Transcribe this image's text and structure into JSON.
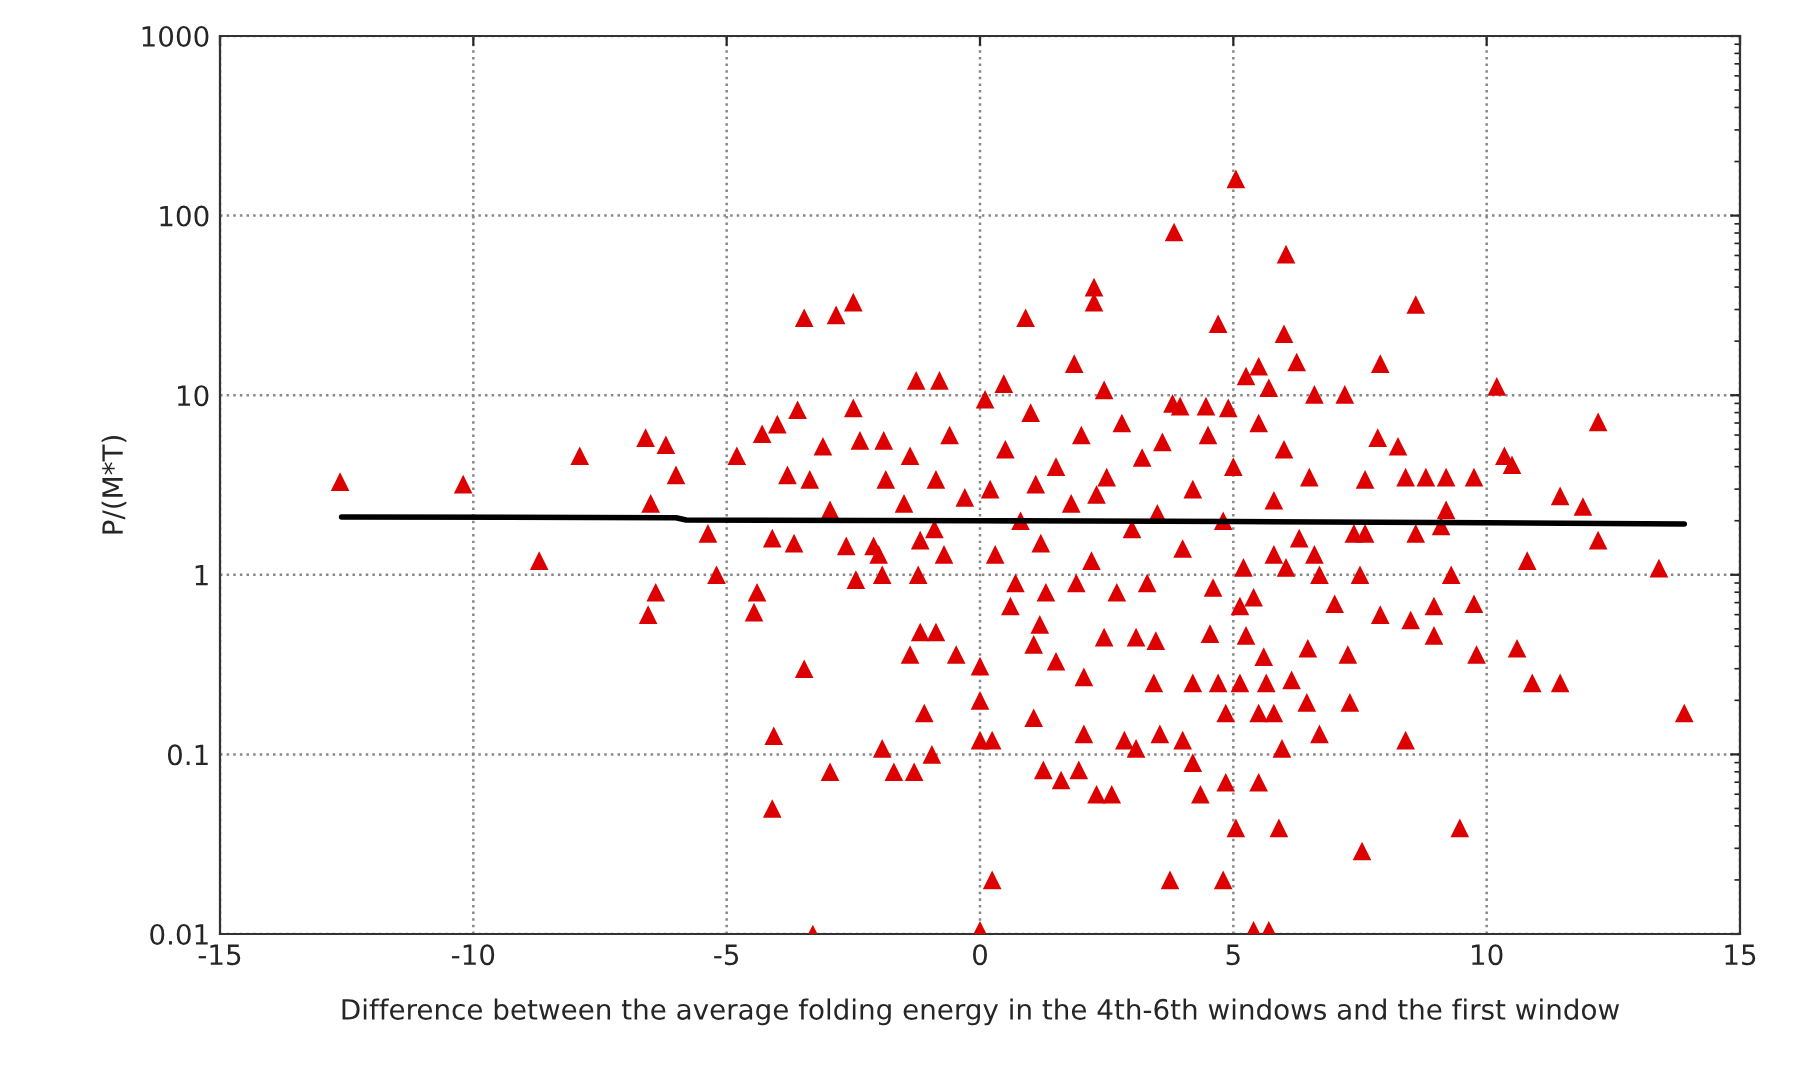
{
  "chart_data": {
    "type": "scatter",
    "xlabel": "Difference between the average folding energy in the 4th-6th windows and the first window",
    "ylabel": "P/(M*T)",
    "log": "y",
    "grid": true,
    "xlim": [
      -15,
      15
    ],
    "ylim": [
      0.01,
      1000
    ],
    "xticks": [
      -15,
      -10,
      -5,
      0,
      5,
      10,
      15
    ],
    "yticks": [
      0.01,
      0.1,
      1,
      10,
      100,
      1000
    ],
    "series": [
      {
        "color": "#dd0000",
        "marker": "triangle",
        "x": [
          -12.63,
          -10.2,
          -8.7,
          -7.9,
          -6.6,
          -6.2,
          -6.0,
          -6.5,
          -6.4,
          -6.55,
          -5.37,
          -4.8,
          -5.2,
          -4.4,
          -4.46,
          -4.3,
          -4.0,
          -3.6,
          -3.47,
          -2.84,
          -2.5,
          -3.8,
          -3.36,
          -3.1,
          -2.5,
          -4.1,
          -3.67,
          -2.96,
          -3.47,
          -4.07,
          -4.1,
          -2.96,
          -3.3,
          -1.93,
          -1.7,
          -1.3,
          -0.95,
          -1.1,
          -1.38,
          -1.18,
          -0.87,
          -0.47,
          -1.26,
          -0.8,
          -2.45,
          -1.93,
          -1.22,
          -2.37,
          -1.9,
          -1.86,
          -1.38,
          -0.87,
          -2.64,
          -2.1,
          -1.18,
          -0.71,
          5.05,
          3.83,
          6.04,
          2.25,
          2.25,
          0.9,
          4.7,
          8.6,
          6.0,
          7.9,
          1.86,
          10.2,
          12.2,
          10.35,
          10.5,
          11.45,
          11.9,
          12.2,
          10.8,
          13.4,
          13.9,
          10.6,
          10.9,
          11.45,
          9.8,
          9.75,
          9.47,
          8.4,
          7.54,
          5.05,
          5.9,
          5.4,
          5.7,
          3.75,
          4.8,
          0.24,
          0.0,
          1.95,
          2.6,
          1.6,
          1.25,
          2.3,
          4.35,
          5.5,
          4.85,
          4.2,
          5.96,
          3.55,
          4.0,
          3.08,
          2.85,
          2.05,
          0.24,
          1.06,
          4.85,
          5.5,
          5.8,
          6.7,
          6.45,
          7.3,
          3.43,
          4.2,
          4.7,
          5.13,
          5.65,
          6.15,
          2.05,
          1.5,
          5.6,
          6.47,
          7.26,
          8.96,
          7.9,
          8.5,
          8.96,
          9.3,
          7.0,
          5.25,
          4.54,
          3.47,
          3.08,
          2.45,
          1.06,
          0.0,
          0.0,
          0.0,
          0.6,
          1.18,
          8.6,
          9.1,
          9.75,
          9.2,
          7.6,
          8.4,
          8.8,
          9.2,
          8.25,
          7.85,
          7.2,
          6.6,
          6.25,
          5.5,
          5.25,
          3.95,
          4.46,
          2.45,
          0.47,
          7.38,
          7.6,
          6.6,
          6.7,
          6.04,
          5.8,
          7.5,
          5.13,
          0.2,
          0.5,
          0.8,
          1.0,
          1.2,
          1.5,
          1.8,
          2.0,
          2.2,
          2.5,
          2.8,
          3.0,
          3.2,
          3.5,
          3.8,
          4.0,
          4.2,
          4.5,
          4.8,
          5.0,
          5.2,
          5.5,
          5.8,
          6.0,
          6.3,
          0.3,
          0.7,
          1.3,
          1.9,
          2.7,
          3.3,
          4.6,
          5.4,
          6.5,
          -0.3,
          -0.6,
          -0.9,
          -1.5,
          -2.0,
          0.1,
          3.6,
          2.3,
          1.1,
          4.9,
          5.7
        ],
        "values": [
          3.3,
          3.2,
          1.2,
          4.6,
          5.8,
          5.3,
          3.6,
          2.5,
          0.8,
          0.6,
          1.7,
          4.6,
          1.0,
          0.8,
          0.62,
          6.1,
          6.9,
          8.3,
          27,
          28,
          33,
          3.6,
          3.4,
          5.2,
          8.5,
          1.6,
          1.5,
          2.3,
          0.3,
          0.127,
          0.05,
          0.08,
          0.01,
          0.108,
          0.08,
          0.08,
          0.1,
          0.17,
          0.36,
          0.48,
          0.48,
          0.36,
          12.1,
          12.1,
          0.94,
          1.0,
          1.0,
          5.6,
          5.6,
          3.4,
          4.6,
          3.4,
          1.45,
          1.45,
          1.56,
          1.3,
          160,
          81,
          61,
          40,
          33,
          27,
          25,
          32,
          22,
          15,
          15,
          11.2,
          7.1,
          4.6,
          4.1,
          2.75,
          2.4,
          1.56,
          1.2,
          1.09,
          0.17,
          0.39,
          0.25,
          0.25,
          0.36,
          0.69,
          0.039,
          0.12,
          0.029,
          0.039,
          0.039,
          0.0105,
          0.0105,
          0.02,
          0.02,
          0.02,
          0.0105,
          0.082,
          0.06,
          0.072,
          0.082,
          0.06,
          0.06,
          0.07,
          0.07,
          0.09,
          0.108,
          0.13,
          0.12,
          0.108,
          0.12,
          0.13,
          0.12,
          0.16,
          0.17,
          0.17,
          0.17,
          0.13,
          0.195,
          0.195,
          0.25,
          0.25,
          0.25,
          0.25,
          0.25,
          0.26,
          0.27,
          0.33,
          0.35,
          0.39,
          0.36,
          0.46,
          0.6,
          0.56,
          0.67,
          1.0,
          0.69,
          0.46,
          0.47,
          0.43,
          0.45,
          0.45,
          0.41,
          0.31,
          0.2,
          0.12,
          0.67,
          0.53,
          1.7,
          1.87,
          3.5,
          2.3,
          3.4,
          3.5,
          3.5,
          3.5,
          5.2,
          5.8,
          10.1,
          10.1,
          15.3,
          14.5,
          12.8,
          8.7,
          8.7,
          10.7,
          11.6,
          1.7,
          1.7,
          1.3,
          1.0,
          1.1,
          1.3,
          1.0,
          0.67,
          3,
          5,
          2,
          8,
          1.5,
          4,
          2.5,
          6,
          1.2,
          3.5,
          7,
          1.8,
          4.5,
          2.2,
          9,
          1.4,
          3,
          6,
          2,
          4,
          1.1,
          7,
          2.6,
          5,
          1.6,
          1.3,
          0.9,
          0.8,
          0.9,
          0.8,
          0.9,
          0.85,
          0.75,
          3.5,
          2.7,
          6,
          1.8,
          2.5,
          1.3,
          9.5,
          5.5,
          2.8,
          3.2,
          8.5,
          11
        ]
      },
      {
        "type": "line",
        "color": "#000000",
        "marker": "none",
        "line_style": "solid",
        "x": [
          -12.6,
          -6.0,
          -5.8,
          0,
          5,
          10,
          13.9
        ],
        "values": [
          2.1,
          2.08,
          2.02,
          2.0,
          1.98,
          1.95,
          1.92
        ]
      }
    ]
  }
}
